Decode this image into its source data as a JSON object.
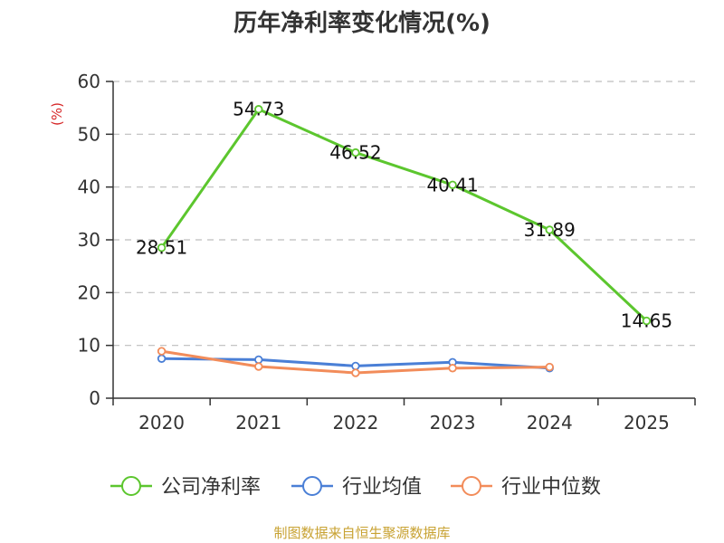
{
  "chart_data": {
    "type": "line",
    "title": "历年净利率变化情况(%)",
    "ylabel": "(%)",
    "xlabel": "",
    "categories": [
      "2020",
      "2021",
      "2022",
      "2023",
      "2024",
      "2025"
    ],
    "ylim": [
      0,
      60
    ],
    "yticks": [
      0,
      10,
      20,
      30,
      40,
      50,
      60
    ],
    "grid": true,
    "legend_position": "bottom",
    "series": [
      {
        "name": "公司净利率",
        "color": "#5cc62e",
        "values": [
          28.51,
          54.73,
          46.52,
          40.41,
          31.89,
          14.65
        ],
        "labels": [
          "28.51",
          "54.73",
          "46.52",
          "40.41",
          "31.89",
          "14.65"
        ],
        "show_labels": true
      },
      {
        "name": "行业均值",
        "color": "#4a7fd6",
        "values": [
          7.5,
          7.3,
          6.1,
          6.8,
          5.7,
          null
        ],
        "show_labels": false
      },
      {
        "name": "行业中位数",
        "color": "#f28c5a",
        "values": [
          8.9,
          6.0,
          4.8,
          5.7,
          5.9,
          null
        ],
        "show_labels": false
      }
    ]
  },
  "source": "制图数据来自恒生聚源数据库"
}
